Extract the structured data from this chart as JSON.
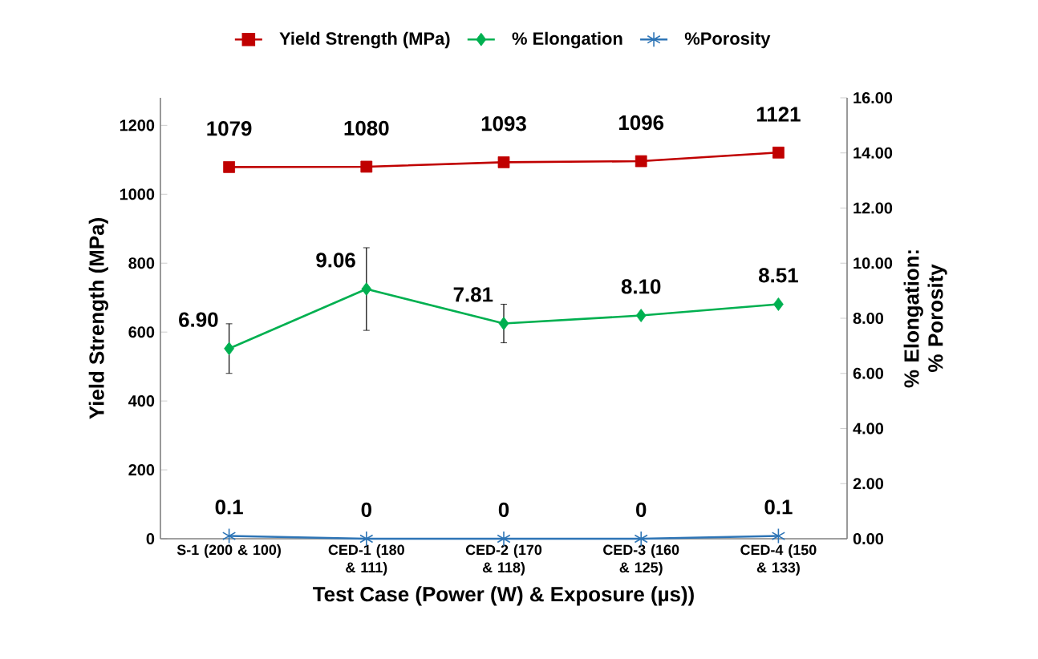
{
  "chart_data": {
    "type": "line",
    "categories": [
      "S-1 (200 & 100)",
      "CED-1 (180 & 111)",
      "CED-2 (170 & 118)",
      "CED-3 (160 & 125)",
      "CED-4 (150 & 133)"
    ],
    "series": [
      {
        "name": "Yield Strength (MPa)",
        "color": "#c00000",
        "marker": "square",
        "axis": "y",
        "values": [
          1079,
          1080,
          1093,
          1096,
          1121
        ],
        "value_labels": [
          "1079",
          "1080",
          "1093",
          "1096",
          "1121"
        ]
      },
      {
        "name": "% Elongation",
        "color": "#00b050",
        "marker": "diamond",
        "axis": "y2",
        "values": [
          6.9,
          9.06,
          7.81,
          8.1,
          8.51
        ],
        "value_labels": [
          "6.90",
          "9.06",
          "7.81",
          "8.10",
          "8.51"
        ],
        "errors": [
          0.9,
          1.5,
          0.7,
          null,
          null
        ]
      },
      {
        "name": "%Porosity",
        "color": "#2e75b6",
        "marker": "cross",
        "axis": "y2",
        "values": [
          0.1,
          0,
          0,
          0,
          0.1
        ],
        "value_labels": [
          "0.1",
          "0",
          "0",
          "0",
          "0.1"
        ]
      }
    ],
    "xlabel": "Test Case (Power (W) & Exposure (µs))",
    "ylabel": "Yield Strength (MPa)",
    "y2label": "% Elongation: % Porosity",
    "ylim": [
      0,
      1280
    ],
    "yticks": [
      0,
      200,
      400,
      600,
      800,
      1000,
      1200
    ],
    "y2lim": [
      0,
      16
    ],
    "y2ticks": [
      {
        "value": 0,
        "label": "0.00"
      },
      {
        "value": 2,
        "label": "2.00"
      },
      {
        "value": 4,
        "label": "4.00"
      },
      {
        "value": 6,
        "label": "6.00"
      },
      {
        "value": 8,
        "label": "8.00"
      },
      {
        "value": 10,
        "label": "10.00"
      },
      {
        "value": 12,
        "label": "12.00"
      },
      {
        "value": 14,
        "label": "14.00"
      },
      {
        "value": 16,
        "label": "16.00"
      }
    ],
    "legend": "top",
    "grid": false
  }
}
